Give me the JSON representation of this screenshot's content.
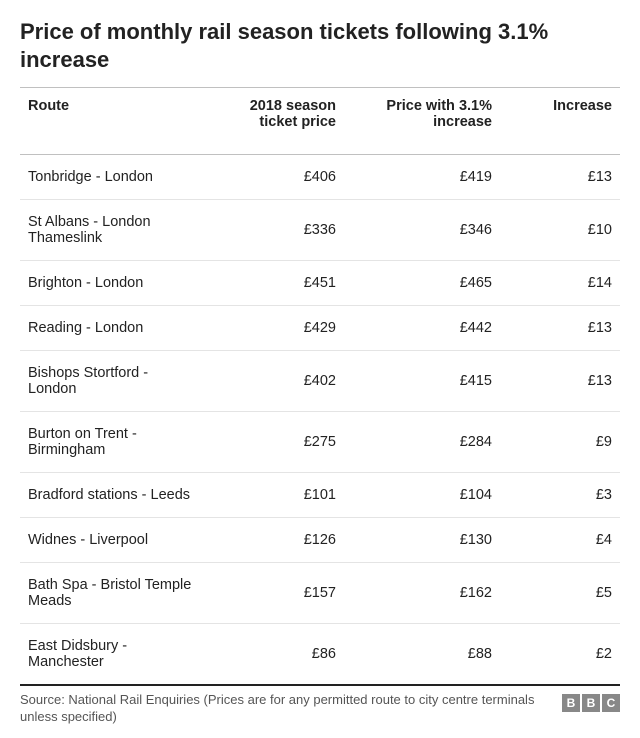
{
  "title": "Price of monthly rail season tickets following 3.1% increase",
  "table": {
    "type": "table",
    "columns": [
      {
        "key": "route",
        "label": "Route",
        "align": "left",
        "width_pct": 31
      },
      {
        "key": "price2018",
        "label": "2018 season ticket price",
        "align": "right",
        "width_pct": 23
      },
      {
        "key": "priceNew",
        "label": "Price with 3.1% increase",
        "align": "right",
        "width_pct": 26
      },
      {
        "key": "increase",
        "label": "Increase",
        "align": "right",
        "width_pct": 20
      }
    ],
    "rows": [
      {
        "route": "Tonbridge - London",
        "price2018": "£406",
        "priceNew": "£419",
        "increase": "£13"
      },
      {
        "route": "St Albans - London Thameslink",
        "price2018": "£336",
        "priceNew": "£346",
        "increase": "£10"
      },
      {
        "route": "Brighton - London",
        "price2018": "£451",
        "priceNew": "£465",
        "increase": "£14"
      },
      {
        "route": "Reading - London",
        "price2018": "£429",
        "priceNew": "£442",
        "increase": "£13"
      },
      {
        "route": "Bishops Stortford - London",
        "price2018": "£402",
        "priceNew": "£415",
        "increase": "£13"
      },
      {
        "route": "Burton on Trent - Birmingham",
        "price2018": "£275",
        "priceNew": "£284",
        "increase": "£9"
      },
      {
        "route": "Bradford stations - Leeds",
        "price2018": "£101",
        "priceNew": "£104",
        "increase": "£3"
      },
      {
        "route": "Widnes - Liverpool",
        "price2018": "£126",
        "priceNew": "£130",
        "increase": "£4"
      },
      {
        "route": "Bath Spa - Bristol Temple Meads",
        "price2018": "£157",
        "priceNew": "£162",
        "increase": "£5"
      },
      {
        "route": "East Didsbury - Manchester",
        "price2018": "£86",
        "priceNew": "£88",
        "increase": "£2"
      }
    ],
    "header_border_color": "#c0c0c0",
    "row_border_color": "#e4e4e4",
    "bottom_border_color": "#222222",
    "background_color": "#ffffff",
    "body_fontsize": 14.5,
    "title_fontsize": 22,
    "text_color": "#222222"
  },
  "source": "Source: National Rail Enquiries (Prices are for any permitted route to city centre terminals unless specified)",
  "logo": {
    "letters": [
      "B",
      "B",
      "C"
    ],
    "box_bg": "#888888",
    "box_fg": "#ffffff"
  }
}
